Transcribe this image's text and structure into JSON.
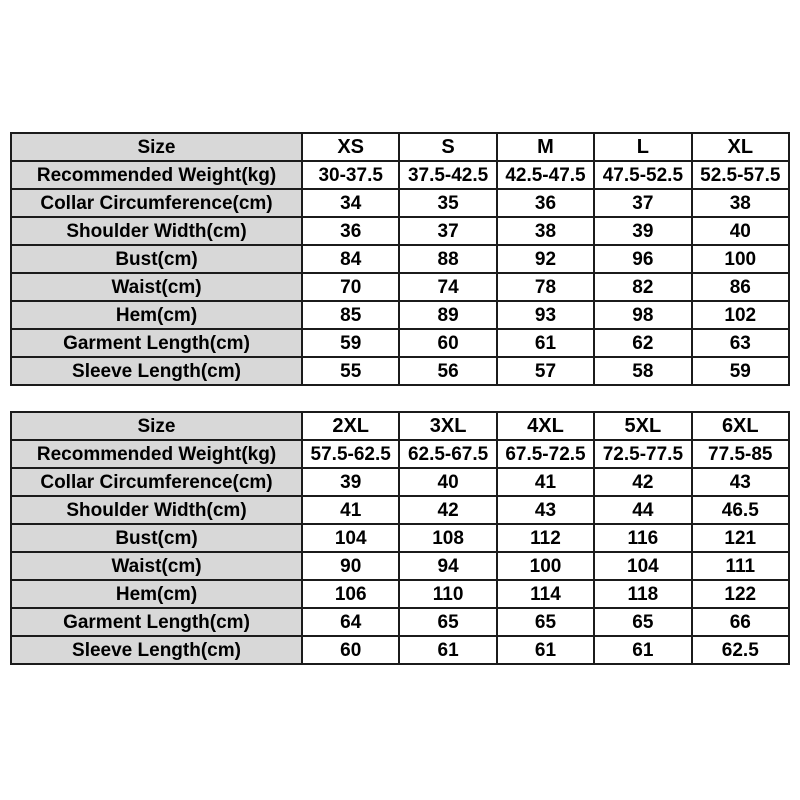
{
  "colors": {
    "background": "#ffffff",
    "label_cell_bg": "#d8d8d8",
    "value_cell_bg": "#ffffff",
    "border": "#1b1b1b",
    "text": "#000000"
  },
  "tables": [
    {
      "header": {
        "label": "Size",
        "sizes": [
          "XS",
          "S",
          "M",
          "L",
          "XL"
        ]
      },
      "rows": [
        {
          "label": "Recommended Weight(kg)",
          "values": [
            "30-37.5",
            "37.5-42.5",
            "42.5-47.5",
            "47.5-52.5",
            "52.5-57.5"
          ]
        },
        {
          "label": "Collar Circumference(cm)",
          "values": [
            "34",
            "35",
            "36",
            "37",
            "38"
          ]
        },
        {
          "label": "Shoulder Width(cm)",
          "values": [
            "36",
            "37",
            "38",
            "39",
            "40"
          ]
        },
        {
          "label": "Bust(cm)",
          "values": [
            "84",
            "88",
            "92",
            "96",
            "100"
          ]
        },
        {
          "label": "Waist(cm)",
          "values": [
            "70",
            "74",
            "78",
            "82",
            "86"
          ]
        },
        {
          "label": "Hem(cm)",
          "values": [
            "85",
            "89",
            "93",
            "98",
            "102"
          ]
        },
        {
          "label": "Garment Length(cm)",
          "values": [
            "59",
            "60",
            "61",
            "62",
            "63"
          ]
        },
        {
          "label": "Sleeve Length(cm)",
          "values": [
            "55",
            "56",
            "57",
            "58",
            "59"
          ]
        }
      ]
    },
    {
      "header": {
        "label": "Size",
        "sizes": [
          "2XL",
          "3XL",
          "4XL",
          "5XL",
          "6XL"
        ]
      },
      "rows": [
        {
          "label": "Recommended Weight(kg)",
          "values": [
            "57.5-62.5",
            "62.5-67.5",
            "67.5-72.5",
            "72.5-77.5",
            "77.5-85"
          ]
        },
        {
          "label": "Collar Circumference(cm)",
          "values": [
            "39",
            "40",
            "41",
            "42",
            "43"
          ]
        },
        {
          "label": "Shoulder Width(cm)",
          "values": [
            "41",
            "42",
            "43",
            "44",
            "46.5"
          ]
        },
        {
          "label": "Bust(cm)",
          "values": [
            "104",
            "108",
            "112",
            "116",
            "121"
          ]
        },
        {
          "label": "Waist(cm)",
          "values": [
            "90",
            "94",
            "100",
            "104",
            "111"
          ]
        },
        {
          "label": "Hem(cm)",
          "values": [
            "106",
            "110",
            "114",
            "118",
            "122"
          ]
        },
        {
          "label": "Garment Length(cm)",
          "values": [
            "64",
            "65",
            "65",
            "65",
            "66"
          ]
        },
        {
          "label": "Sleeve Length(cm)",
          "values": [
            "60",
            "61",
            "61",
            "61",
            "62.5"
          ]
        }
      ]
    }
  ],
  "chart_data": [
    {
      "type": "table",
      "title": "Size chart (XS-XL)",
      "columns": [
        "Size",
        "XS",
        "S",
        "M",
        "L",
        "XL"
      ],
      "rows": [
        [
          "Recommended Weight(kg)",
          "30-37.5",
          "37.5-42.5",
          "42.5-47.5",
          "47.5-52.5",
          "52.5-57.5"
        ],
        [
          "Collar Circumference(cm)",
          "34",
          "35",
          "36",
          "37",
          "38"
        ],
        [
          "Shoulder Width(cm)",
          "36",
          "37",
          "38",
          "39",
          "40"
        ],
        [
          "Bust(cm)",
          "84",
          "88",
          "92",
          "96",
          "100"
        ],
        [
          "Waist(cm)",
          "70",
          "74",
          "78",
          "82",
          "86"
        ],
        [
          "Hem(cm)",
          "85",
          "89",
          "93",
          "98",
          "102"
        ],
        [
          "Garment Length(cm)",
          "59",
          "60",
          "61",
          "62",
          "63"
        ],
        [
          "Sleeve Length(cm)",
          "55",
          "56",
          "57",
          "58",
          "59"
        ]
      ]
    },
    {
      "type": "table",
      "title": "Size chart (2XL-6XL)",
      "columns": [
        "Size",
        "2XL",
        "3XL",
        "4XL",
        "5XL",
        "6XL"
      ],
      "rows": [
        [
          "Recommended Weight(kg)",
          "57.5-62.5",
          "62.5-67.5",
          "67.5-72.5",
          "72.5-77.5",
          "77.5-85"
        ],
        [
          "Collar Circumference(cm)",
          "39",
          "40",
          "41",
          "42",
          "43"
        ],
        [
          "Shoulder Width(cm)",
          "41",
          "42",
          "43",
          "44",
          "46.5"
        ],
        [
          "Bust(cm)",
          "104",
          "108",
          "112",
          "116",
          "121"
        ],
        [
          "Waist(cm)",
          "90",
          "94",
          "100",
          "104",
          "111"
        ],
        [
          "Hem(cm)",
          "106",
          "110",
          "114",
          "118",
          "122"
        ],
        [
          "Garment Length(cm)",
          "64",
          "65",
          "65",
          "65",
          "66"
        ],
        [
          "Sleeve Length(cm)",
          "60",
          "61",
          "61",
          "61",
          "62.5"
        ]
      ]
    }
  ]
}
